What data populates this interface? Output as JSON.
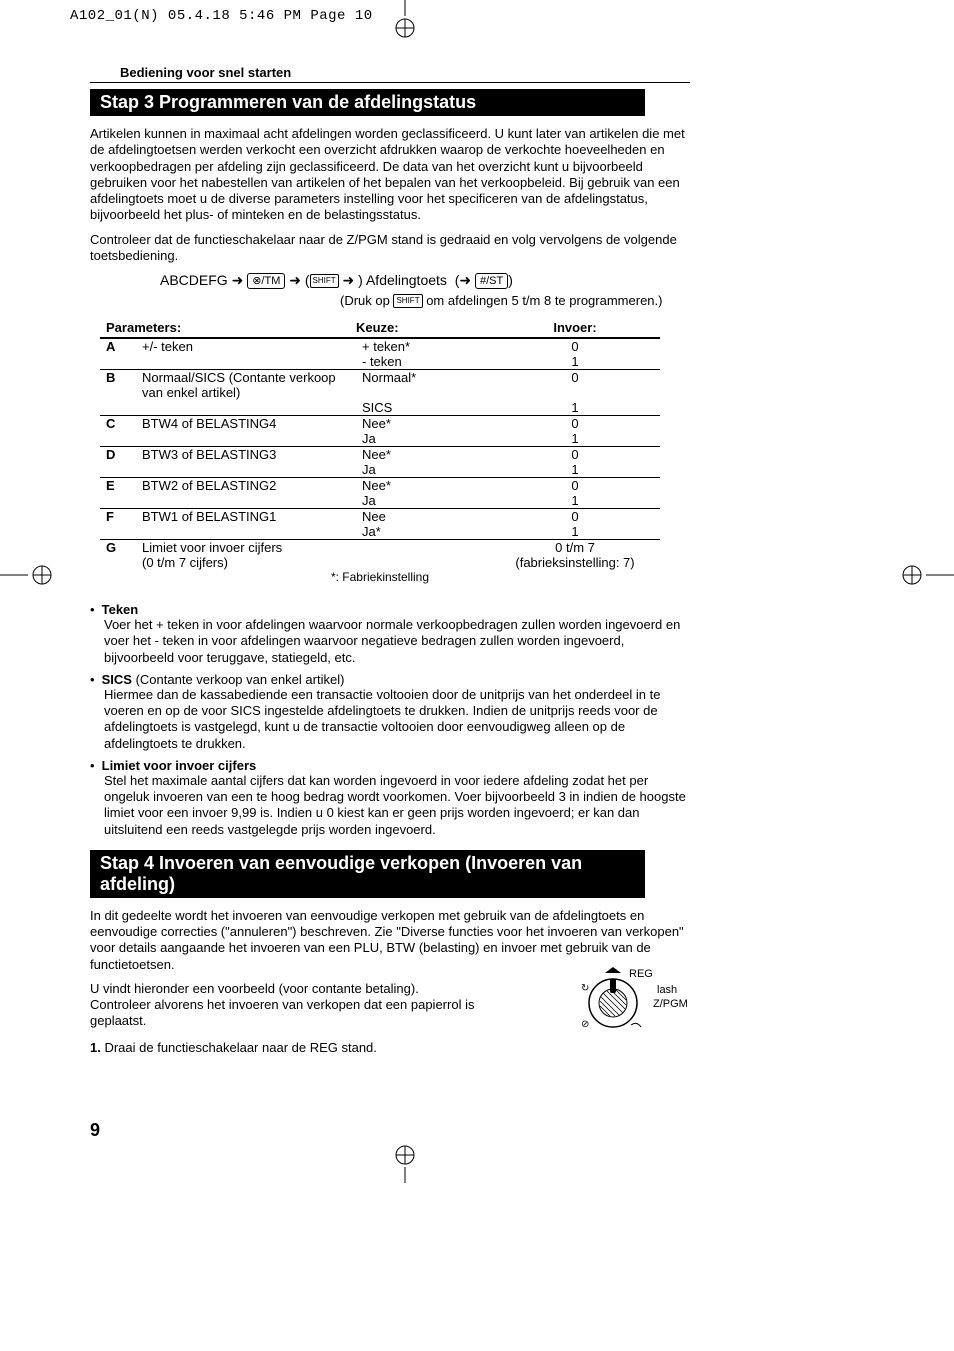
{
  "print_header": "A102_01(N)  05.4.18 5:46 PM  Page 10",
  "section_label": "Bediening voor snel starten",
  "stap3_title": "Stap 3  Programmeren van de afdelingstatus",
  "intro_text": "Artikelen kunnen in maximaal acht afdelingen worden geclassificeerd. U kunt later van artikelen die met de afdelingtoetsen werden verkocht een overzicht afdrukken waarop de verkochte hoeveelheden en verkoopbedragen per afdeling zijn geclassificeerd. De data van het overzicht kunt u bijvoorbeeld gebruiken voor het nabestellen van artikelen of het bepalen van het verkoopbeleid. Bij gebruik van een afdelingtoets moet u de diverse parameters instelling voor het specificeren van de afdelingstatus, bijvoorbeeld het plus- of minteken en de belastingsstatus.",
  "intro_text2": "Controleer dat de functieschakelaar naar de Z/PGM stand is gedraaid en volg vervolgens de volgende toetsbediening.",
  "seq": {
    "abcdefg": "ABCDEFG",
    "arrow": "➜",
    "key_tm": "⊗/TM",
    "key_shift": "SHIFT",
    "lparen": "(",
    "rparen": ")",
    "afdelingtoets": "Afdelingtoets",
    "key_st": "#/ST"
  },
  "subnote_pre": "(Druk op ",
  "subnote_post": " om afdelingen 5 t/m 8 te programmeren.)",
  "table": {
    "headers": {
      "params": "Parameters:",
      "keuze": "Keuze:",
      "invoer": "Invoer:"
    },
    "rows": [
      {
        "letter": "A",
        "desc": "+/- teken",
        "opts": [
          [
            "+ teken*",
            "0"
          ],
          [
            "- teken",
            "1"
          ]
        ]
      },
      {
        "letter": "B",
        "desc": "Normaal/SICS (Contante verkoop van enkel artikel)",
        "opts": [
          [
            "Normaal*",
            "0"
          ],
          [
            "SICS",
            "1"
          ]
        ]
      },
      {
        "letter": "C",
        "desc": "BTW4 of BELASTING4",
        "opts": [
          [
            "Nee*",
            "0"
          ],
          [
            "Ja",
            "1"
          ]
        ]
      },
      {
        "letter": "D",
        "desc": "BTW3 of BELASTING3",
        "opts": [
          [
            "Nee*",
            "0"
          ],
          [
            "Ja",
            "1"
          ]
        ]
      },
      {
        "letter": "E",
        "desc": "BTW2 of BELASTING2",
        "opts": [
          [
            "Nee*",
            "0"
          ],
          [
            "Ja",
            "1"
          ]
        ]
      },
      {
        "letter": "F",
        "desc": "BTW1 of BELASTING1",
        "opts": [
          [
            "Nee",
            "0"
          ],
          [
            "Ja*",
            "1"
          ]
        ]
      },
      {
        "letter": "G",
        "desc": "Limiet voor invoer cijfers\n(0 t/m 7 cijfers)",
        "opts": [
          [
            "",
            "0 t/m 7"
          ],
          [
            "",
            "(fabrieksinstelling: 7)"
          ]
        ]
      }
    ],
    "footnote": "*: Fabriekinstelling"
  },
  "bullets": [
    {
      "head_bold": "Teken",
      "head_rest": "",
      "body": "Voer het + teken in voor afdelingen waarvoor normale verkoopbedragen zullen worden ingevoerd en voer het - teken in voor afdelingen waarvoor negatieve bedragen zullen worden ingevoerd, bijvoorbeeld voor teruggave, statiegeld, etc."
    },
    {
      "head_bold": "SICS",
      "head_rest": " (Contante verkoop van enkel artikel)",
      "body": "Hiermee dan de kassabediende een transactie voltooien door de unitprijs van het onderdeel in te voeren en op de voor SICS ingestelde afdelingtoets te drukken. Indien de unitprijs reeds voor de afdelingtoets is vastgelegd, kunt u de transactie voltooien door eenvoudigweg alleen op de afdelingtoets te drukken."
    },
    {
      "head_bold": "Limiet voor invoer cijfers",
      "head_rest": "",
      "body": "Stel het maximale aantal cijfers dat kan worden ingevoerd in voor iedere afdeling zodat het per ongeluk invoeren van een te hoog bedrag wordt voorkomen. Voer bijvoorbeeld 3 in indien de hoogste limiet voor een invoer 9,99 is. Indien u 0 kiest kan er geen prijs worden ingevoerd; er kan dan uitsluitend een reeds vastgelegde prijs worden ingevoerd."
    }
  ],
  "stap4_title": "Stap 4  Invoeren van eenvoudige verkopen (Invoeren van afdeling)",
  "stap4_p1": "In dit gedeelte wordt het invoeren van eenvoudige verkopen met gebruik van de afdelingtoets en eenvoudige correcties (\"annuleren\") beschreven. Zie \"Diverse functies voor het invoeren van verkopen\" voor details aangaande het invoeren van een PLU, BTW (belasting) en invoer met gebruik van de functietoetsen.",
  "stap4_p2": "U vindt hieronder een voorbeeld (voor contante betaling).\nControleer alvorens het invoeren van verkopen dat een papierrol is geplaatst.",
  "stap4_item1_num": "1.",
  "stap4_item1_text": "Draai de functieschakelaar naar de REG stand.",
  "dial": {
    "reg": "REG",
    "flash": "lash",
    "zpgm": "Z/PGM"
  },
  "page_num": "9"
}
